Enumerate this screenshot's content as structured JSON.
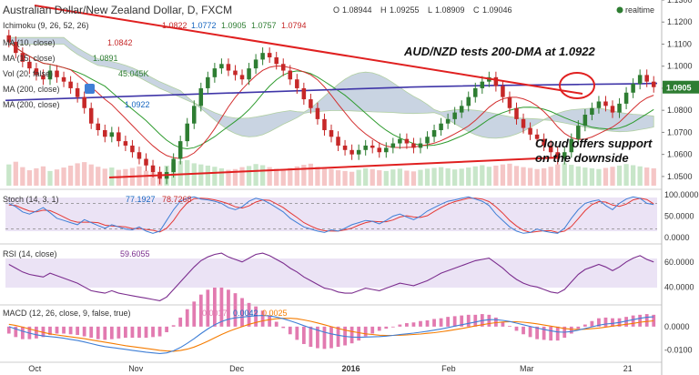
{
  "header": {
    "title": "Australian Dollar/New Zealand Dollar, D, FXCM",
    "ohlc": [
      {
        "key": "O",
        "value": "1.08944"
      },
      {
        "key": "H",
        "value": "1.09255"
      },
      {
        "key": "L",
        "value": "1.08909"
      },
      {
        "key": "C",
        "value": "1.09046"
      }
    ],
    "realtime_label": "realtime"
  },
  "indicators": {
    "ichimoku": {
      "label": "Ichimoku (9, 26, 52, 26)",
      "values": [
        "1.0822",
        "1.0772",
        "1.0905",
        "1.0757",
        "1.0794"
      ]
    },
    "ma10": {
      "label": "MA (10, close)",
      "value": "1.0842"
    },
    "ma15": {
      "label": "MA (15, close)",
      "value": "1.0891"
    },
    "vol": {
      "label": "Vol (20, false)",
      "value": "45.045K"
    },
    "ma200a": {
      "label": "MA (200, close)"
    },
    "ma200b": {
      "label": "MA (200, close)",
      "value": "1.0922"
    }
  },
  "annotations": {
    "headline": "AUD/NZD tests 200-DMA at 1.0922",
    "support_line1": "Cloud offers support",
    "support_line2": "on the downside"
  },
  "colors": {
    "up": "#2e7d32",
    "down": "#c62828",
    "trendline": "#e02020",
    "ma200": "#3f35a8",
    "ma_fast": "#d32f2f",
    "ma_slow": "#2e9b2e",
    "cloud": "#b7c6d9",
    "cloud_edge": "#97c084",
    "stoch_bg": "#e6dcf2",
    "rsi_bg": "#e6dcf2",
    "rsi_line": "#7b2d8e",
    "stoch_k": "#3f7fd6",
    "stoch_d": "#e53935",
    "macd": "#3f7fd6",
    "signal": "#f57c00",
    "hist": "#e27ab0",
    "last_price_bg": "#2e7d32"
  },
  "chart_data": [
    {
      "type": "candlestick",
      "panel": "price",
      "ylim": [
        1.045,
        1.13
      ],
      "y_ticks": [
        "1.1300",
        "1.1200",
        "1.1100",
        "1.1000",
        "1.0900",
        "1.0800",
        "1.0700",
        "1.0600",
        "1.0500"
      ],
      "last_price": "1.0905",
      "x_labels": [
        "Oct",
        "Nov",
        "Dec",
        "2016",
        "Feb",
        "Mar",
        "21"
      ],
      "close": [
        1.111,
        1.106,
        1.102,
        1.099,
        1.096,
        1.094,
        1.098,
        1.095,
        1.093,
        1.09,
        1.086,
        1.081,
        1.074,
        1.071,
        1.068,
        1.07,
        1.066,
        1.064,
        1.061,
        1.058,
        1.055,
        1.052,
        1.049,
        1.052,
        1.058,
        1.066,
        1.074,
        1.082,
        1.09,
        1.095,
        1.099,
        1.101,
        1.098,
        1.096,
        1.094,
        1.099,
        1.103,
        1.106,
        1.104,
        1.101,
        1.098,
        1.094,
        1.09,
        1.085,
        1.081,
        1.076,
        1.071,
        1.068,
        1.064,
        1.062,
        1.06,
        1.062,
        1.064,
        1.063,
        1.061,
        1.063,
        1.065,
        1.067,
        1.065,
        1.063,
        1.065,
        1.068,
        1.071,
        1.074,
        1.076,
        1.079,
        1.082,
        1.086,
        1.09,
        1.093,
        1.095,
        1.091,
        1.086,
        1.081,
        1.076,
        1.072,
        1.069,
        1.067,
        1.064,
        1.061,
        1.058,
        1.061,
        1.067,
        1.073,
        1.078,
        1.081,
        1.084,
        1.082,
        1.079,
        1.083,
        1.088,
        1.092,
        1.096,
        1.093,
        1.0905
      ],
      "volume": [
        55,
        62,
        48,
        40,
        45,
        50,
        38,
        42,
        47,
        52,
        58,
        61,
        55,
        49,
        44,
        47,
        41,
        43,
        46,
        50,
        39,
        35,
        37,
        52,
        60,
        64,
        66,
        58,
        55,
        52,
        49,
        45,
        41,
        43,
        48,
        51,
        56,
        53,
        48,
        44,
        42,
        46,
        50,
        54,
        57,
        49,
        46,
        43,
        40,
        38,
        36,
        41,
        45,
        43,
        40,
        38,
        42,
        44,
        39,
        37,
        41,
        44,
        46,
        48,
        45,
        42,
        44,
        47,
        50,
        53,
        49,
        52,
        55,
        57,
        51,
        48,
        46,
        43,
        45,
        49,
        55,
        58,
        54,
        50,
        47,
        45,
        43,
        46,
        49,
        52,
        56,
        53,
        50,
        47,
        45
      ]
    },
    {
      "type": "line",
      "panel": "stochastic",
      "label": "Stoch (14, 3, 1)",
      "values_text": [
        "77.1927",
        "78.7268"
      ],
      "ylim": [
        0,
        100
      ],
      "y_ticks": [
        "100.0000",
        "50.0000",
        "0.0000"
      ],
      "k": [
        80,
        72,
        60,
        55,
        62,
        70,
        58,
        45,
        40,
        35,
        30,
        42,
        35,
        28,
        22,
        30,
        25,
        20,
        18,
        25,
        15,
        10,
        15,
        40,
        65,
        85,
        92,
        95,
        90,
        88,
        85,
        80,
        70,
        65,
        72,
        85,
        92,
        88,
        80,
        70,
        60,
        45,
        35,
        25,
        20,
        15,
        12,
        18,
        15,
        22,
        30,
        35,
        40,
        38,
        32,
        40,
        50,
        55,
        48,
        42,
        50,
        62,
        70,
        78,
        85,
        88,
        92,
        95,
        90,
        85,
        75,
        55,
        40,
        25,
        15,
        10,
        12,
        20,
        15,
        12,
        10,
        22,
        45,
        65,
        80,
        85,
        88,
        75,
        65,
        80,
        90,
        95,
        92,
        80,
        77
      ],
      "d": [
        76,
        75,
        68,
        62,
        60,
        64,
        63,
        56,
        48,
        40,
        36,
        36,
        36,
        35,
        29,
        27,
        26,
        25,
        21,
        21,
        19,
        17,
        13,
        22,
        40,
        63,
        81,
        91,
        92,
        91,
        88,
        84,
        79,
        72,
        69,
        74,
        83,
        88,
        87,
        79,
        70,
        58,
        47,
        35,
        27,
        20,
        16,
        15,
        15,
        18,
        22,
        29,
        35,
        38,
        37,
        37,
        41,
        48,
        51,
        48,
        47,
        51,
        61,
        70,
        78,
        84,
        88,
        92,
        92,
        90,
        84,
        72,
        57,
        40,
        27,
        17,
        12,
        14,
        16,
        16,
        12,
        15,
        26,
        44,
        63,
        77,
        84,
        83,
        76,
        73,
        78,
        88,
        92,
        89,
        79
      ]
    },
    {
      "type": "line",
      "panel": "rsi",
      "label": "RSI (14, close)",
      "value_text": "59.6055",
      "ylim": [
        30,
        70
      ],
      "y_ticks": [
        "60.0000",
        "40.0000"
      ],
      "values": [
        58,
        55,
        52,
        50,
        49,
        48,
        51,
        49,
        47,
        45,
        43,
        40,
        37,
        36,
        35,
        37,
        35,
        34,
        33,
        32,
        31,
        30,
        29,
        32,
        38,
        44,
        50,
        56,
        61,
        64,
        66,
        67,
        64,
        62,
        60,
        63,
        66,
        67,
        65,
        62,
        59,
        55,
        52,
        48,
        45,
        42,
        39,
        38,
        36,
        35,
        35,
        37,
        39,
        38,
        37,
        39,
        41,
        43,
        42,
        41,
        43,
        45,
        48,
        51,
        53,
        55,
        57,
        59,
        61,
        62,
        63,
        59,
        55,
        50,
        46,
        43,
        41,
        40,
        38,
        36,
        35,
        38,
        44,
        50,
        54,
        56,
        58,
        56,
        53,
        56,
        60,
        63,
        65,
        62,
        60
      ]
    },
    {
      "type": "line",
      "panel": "macd",
      "label": "MACD (12, 26, close, 9, false, true)",
      "values_text": [
        "0.0017",
        "0.0042",
        "0.0025"
      ],
      "ylim": [
        -0.013,
        0.007
      ],
      "y_ticks": [
        "0.0000",
        "-0.0100"
      ],
      "macd": [
        0.0,
        -0.001,
        -0.002,
        -0.0028,
        -0.0035,
        -0.004,
        -0.0043,
        -0.0046,
        -0.005,
        -0.0055,
        -0.006,
        -0.0066,
        -0.0073,
        -0.008,
        -0.0086,
        -0.009,
        -0.0094,
        -0.0098,
        -0.0102,
        -0.0106,
        -0.011,
        -0.0113,
        -0.0116,
        -0.0113,
        -0.0104,
        -0.009,
        -0.0072,
        -0.0052,
        -0.003,
        -0.001,
        0.0008,
        0.0022,
        0.0032,
        0.0038,
        0.0041,
        0.0044,
        0.0047,
        0.0048,
        0.0046,
        0.0041,
        0.0034,
        0.0025,
        0.0015,
        0.0004,
        -0.0006,
        -0.0015,
        -0.0024,
        -0.0031,
        -0.0037,
        -0.0042,
        -0.0045,
        -0.0046,
        -0.0045,
        -0.0044,
        -0.0043,
        -0.0041,
        -0.0038,
        -0.0034,
        -0.0031,
        -0.0028,
        -0.0024,
        -0.002,
        -0.0015,
        -0.001,
        -0.0004,
        0.0002,
        0.0008,
        0.0014,
        0.002,
        0.0026,
        0.003,
        0.003,
        0.0027,
        0.0022,
        0.0015,
        0.0008,
        0.0001,
        -0.0006,
        -0.0012,
        -0.0018,
        -0.0023,
        -0.0024,
        -0.0021,
        -0.0015,
        -0.0008,
        -0.0001,
        0.0006,
        0.0011,
        0.0014,
        0.0018,
        0.0024,
        0.003,
        0.0036,
        0.004,
        0.0042
      ],
      "signal": [
        0.001,
        0.0005,
        -0.0002,
        -0.001,
        -0.0018,
        -0.0025,
        -0.0031,
        -0.0036,
        -0.004,
        -0.0044,
        -0.0048,
        -0.0052,
        -0.0057,
        -0.0062,
        -0.0067,
        -0.0072,
        -0.0077,
        -0.0082,
        -0.0086,
        -0.009,
        -0.0094,
        -0.0098,
        -0.0102,
        -0.0105,
        -0.0106,
        -0.0103,
        -0.0097,
        -0.0088,
        -0.0076,
        -0.0063,
        -0.0048,
        -0.0034,
        -0.0021,
        -0.001,
        0.0,
        0.001,
        0.0018,
        0.0025,
        0.003,
        0.0034,
        0.0036,
        0.0036,
        0.0034,
        0.0029,
        0.0023,
        0.0016,
        0.0008,
        0.0,
        -0.0008,
        -0.0015,
        -0.0021,
        -0.0026,
        -0.0031,
        -0.0034,
        -0.0037,
        -0.0038,
        -0.0038,
        -0.0037,
        -0.0036,
        -0.0034,
        -0.0032,
        -0.0029,
        -0.0026,
        -0.0022,
        -0.0018,
        -0.0013,
        -0.0008,
        -0.0003,
        0.0003,
        0.0008,
        0.0013,
        0.0017,
        0.002,
        0.0021,
        0.0021,
        0.0019,
        0.0016,
        0.0012,
        0.0007,
        0.0002,
        -0.0003,
        -0.0008,
        -0.0011,
        -0.0012,
        -0.0011,
        -0.0009,
        -0.0006,
        -0.0002,
        0.0002,
        0.0006,
        0.001,
        0.0014,
        0.0019,
        0.0022,
        0.0025
      ]
    }
  ]
}
